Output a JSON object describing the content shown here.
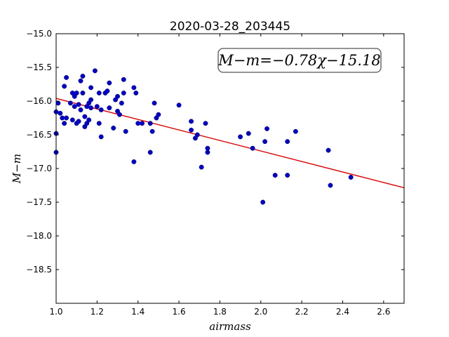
{
  "chart_data": {
    "type": "scatter",
    "title": "2020-03-28_203445",
    "xlabel": "airmass",
    "ylabel": "M−m",
    "xlim": [
      1.0,
      2.7
    ],
    "ylim": [
      -19.0,
      -15.0
    ],
    "y_inverted": true,
    "grid": true,
    "xticks": [
      1.0,
      1.2,
      1.4,
      1.6,
      1.8,
      2.0,
      2.2,
      2.4,
      2.6
    ],
    "xtick_labels": [
      "1.0",
      "1.2",
      "1.4",
      "1.6",
      "1.8",
      "2.0",
      "2.2",
      "2.4",
      "2.6"
    ],
    "yticks": [
      -15.0,
      -15.5,
      -16.0,
      -16.5,
      -17.0,
      -17.5,
      -18.0,
      -18.5
    ],
    "ytick_labels": [
      "−15.0",
      "−15.5",
      "−16.0",
      "−16.5",
      "−17.0",
      "−17.5",
      "−18.0",
      "−18.5"
    ],
    "fit": {
      "slope": -0.78,
      "intercept": -15.18,
      "color": "#dd0000"
    },
    "annotation": "M−m=−0.78χ−15.18",
    "marker_color": "#0000cc",
    "points": [
      [
        1.0,
        -16.16
      ],
      [
        1.0,
        -16.48
      ],
      [
        1.0,
        -16.76
      ],
      [
        1.01,
        -16.03
      ],
      [
        1.02,
        -16.18
      ],
      [
        1.03,
        -16.25
      ],
      [
        1.04,
        -16.33
      ],
      [
        1.04,
        -15.78
      ],
      [
        1.05,
        -15.65
      ],
      [
        1.05,
        -16.25
      ],
      [
        1.07,
        -16.03
      ],
      [
        1.08,
        -16.28
      ],
      [
        1.08,
        -15.88
      ],
      [
        1.09,
        -15.93
      ],
      [
        1.09,
        -16.08
      ],
      [
        1.1,
        -16.33
      ],
      [
        1.1,
        -15.88
      ],
      [
        1.11,
        -16.05
      ],
      [
        1.11,
        -16.3
      ],
      [
        1.12,
        -16.13
      ],
      [
        1.12,
        -15.7
      ],
      [
        1.13,
        -15.63
      ],
      [
        1.13,
        -15.88
      ],
      [
        1.14,
        -16.23
      ],
      [
        1.14,
        -16.38
      ],
      [
        1.15,
        -16.08
      ],
      [
        1.15,
        -16.33
      ],
      [
        1.16,
        -16.28
      ],
      [
        1.16,
        -16.03
      ],
      [
        1.17,
        -16.1
      ],
      [
        1.17,
        -15.98
      ],
      [
        1.17,
        -15.8
      ],
      [
        1.19,
        -15.55
      ],
      [
        1.2,
        -16.08
      ],
      [
        1.21,
        -15.88
      ],
      [
        1.21,
        -16.33
      ],
      [
        1.22,
        -16.13
      ],
      [
        1.22,
        -16.53
      ],
      [
        1.24,
        -15.88
      ],
      [
        1.25,
        -15.85
      ],
      [
        1.26,
        -15.73
      ],
      [
        1.26,
        -16.1
      ],
      [
        1.28,
        -16.4
      ],
      [
        1.29,
        -15.98
      ],
      [
        1.3,
        -15.93
      ],
      [
        1.3,
        -16.15
      ],
      [
        1.31,
        -16.2
      ],
      [
        1.32,
        -16.03
      ],
      [
        1.33,
        -15.88
      ],
      [
        1.33,
        -15.68
      ],
      [
        1.34,
        -16.45
      ],
      [
        1.38,
        -16.9
      ],
      [
        1.38,
        -15.8
      ],
      [
        1.39,
        -15.88
      ],
      [
        1.4,
        -16.33
      ],
      [
        1.42,
        -16.33
      ],
      [
        1.46,
        -16.33
      ],
      [
        1.46,
        -16.76
      ],
      [
        1.47,
        -16.45
      ],
      [
        1.48,
        -16.03
      ],
      [
        1.49,
        -16.25
      ],
      [
        1.5,
        -16.2
      ],
      [
        1.6,
        -16.06
      ],
      [
        1.66,
        -16.3
      ],
      [
        1.66,
        -16.43
      ],
      [
        1.68,
        -16.55
      ],
      [
        1.69,
        -16.5
      ],
      [
        1.71,
        -16.98
      ],
      [
        1.73,
        -16.33
      ],
      [
        1.74,
        -16.76
      ],
      [
        1.74,
        -16.7
      ],
      [
        1.9,
        -16.53
      ],
      [
        1.94,
        -16.48
      ],
      [
        1.96,
        -16.7
      ],
      [
        2.01,
        -17.5
      ],
      [
        2.02,
        -16.6
      ],
      [
        2.03,
        -16.41
      ],
      [
        2.07,
        -17.1
      ],
      [
        2.13,
        -16.6
      ],
      [
        2.13,
        -17.1
      ],
      [
        2.17,
        -16.45
      ],
      [
        2.33,
        -16.73
      ],
      [
        2.34,
        -17.25
      ],
      [
        2.44,
        -17.13
      ]
    ]
  }
}
